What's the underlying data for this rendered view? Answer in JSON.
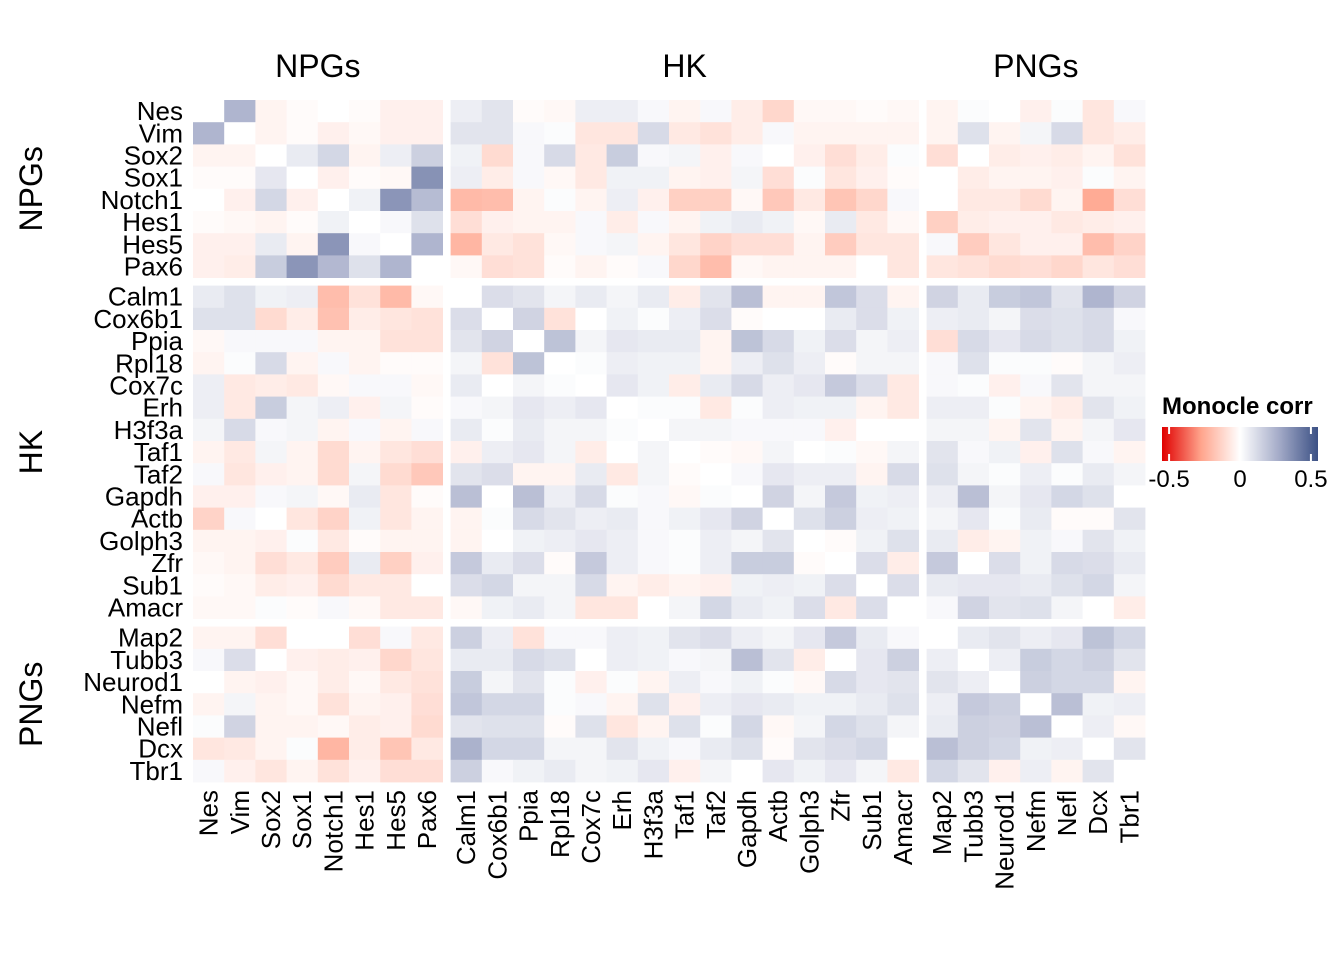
{
  "chart_data": {
    "type": "heatmap",
    "title": "",
    "groups": [
      {
        "name": "NPGs",
        "genes": [
          "Nes",
          "Vim",
          "Sox2",
          "Sox1",
          "Notch1",
          "Hes1",
          "Hes5",
          "Pax6"
        ]
      },
      {
        "name": "HK",
        "genes": [
          "Calm1",
          "Cox6b1",
          "Ppia",
          "Rpl18",
          "Cox7c",
          "Erh",
          "H3f3a",
          "Taf1",
          "Taf2",
          "Gapdh",
          "Actb",
          "Golph3",
          "Zfr",
          "Sub1",
          "Amacr"
        ]
      },
      {
        "name": "PNGs",
        "genes": [
          "Map2",
          "Tubb3",
          "Neurod1",
          "Nefm",
          "Nefl",
          "Dcx",
          "Tbr1"
        ]
      }
    ],
    "legend": {
      "title": "Monocle corr",
      "ticks": [
        -0.5,
        0,
        0.5
      ],
      "tick_labels": [
        "-0.5",
        "0",
        "0.5"
      ],
      "range": [
        -0.5,
        0.5
      ],
      "colors": {
        "low": "#e00000",
        "mid": "#ffffff",
        "high": "#3c5185"
      },
      "placement": "right"
    },
    "matrix": [
      [
        0,
        0.22,
        -0.03,
        -0.01,
        0,
        -0.01,
        -0.04,
        -0.04,
        0.05,
        0.08,
        -0.01,
        -0.02,
        0.05,
        0.05,
        0.02,
        -0.03,
        0.02,
        -0.05,
        -0.11,
        -0.02,
        -0.02,
        -0.01,
        -0.02,
        -0.03,
        0.01,
        0,
        -0.04,
        0.01,
        -0.07,
        0.02
      ],
      [
        0.22,
        0,
        -0.03,
        -0.01,
        -0.04,
        -0.02,
        -0.04,
        -0.04,
        0.08,
        0.08,
        0.02,
        0.01,
        -0.07,
        -0.07,
        0.11,
        -0.06,
        -0.08,
        -0.05,
        0.02,
        -0.03,
        -0.03,
        -0.03,
        -0.03,
        -0.03,
        0.09,
        -0.03,
        0.03,
        0.11,
        -0.07,
        -0.05
      ],
      [
        -0.03,
        -0.03,
        0,
        0.06,
        0.12,
        -0.03,
        0.05,
        0.14,
        0.04,
        -0.1,
        0.02,
        0.11,
        -0.06,
        0.15,
        0.02,
        0.03,
        -0.04,
        0.02,
        0,
        -0.04,
        -0.09,
        -0.05,
        0.01,
        -0.09,
        0,
        -0.05,
        -0.04,
        -0.05,
        -0.03,
        -0.08
      ],
      [
        -0.01,
        -0.01,
        0.07,
        0,
        -0.04,
        -0.01,
        -0.02,
        0.32,
        0.05,
        -0.05,
        0.02,
        -0.02,
        -0.06,
        0.04,
        0.04,
        -0.03,
        -0.04,
        0.03,
        -0.09,
        0.01,
        -0.07,
        -0.04,
        -0.01,
        0,
        -0.05,
        -0.03,
        -0.03,
        -0.04,
        0.01,
        -0.03
      ],
      [
        0,
        -0.04,
        0.12,
        -0.04,
        0,
        0.04,
        0.31,
        0.2,
        -0.19,
        -0.18,
        -0.03,
        0.01,
        -0.03,
        0.05,
        -0.04,
        -0.13,
        -0.13,
        -0.02,
        -0.15,
        -0.06,
        -0.16,
        -0.11,
        0.02,
        0,
        -0.06,
        -0.06,
        -0.1,
        -0.03,
        -0.23,
        -0.09
      ],
      [
        -0.01,
        -0.02,
        -0.03,
        -0.01,
        0.04,
        0,
        0.02,
        0.09,
        -0.09,
        -0.04,
        -0.03,
        -0.03,
        0.02,
        -0.05,
        0.02,
        -0.03,
        0.04,
        0.06,
        0.04,
        -0.02,
        0.06,
        -0.06,
        -0.02,
        -0.13,
        -0.05,
        -0.04,
        -0.04,
        -0.06,
        -0.05,
        -0.04
      ],
      [
        -0.04,
        -0.04,
        0.06,
        -0.03,
        0.31,
        0.02,
        0,
        0.22,
        -0.2,
        -0.06,
        -0.08,
        -0.02,
        0.02,
        0.03,
        -0.03,
        -0.07,
        -0.12,
        -0.09,
        -0.09,
        -0.03,
        -0.14,
        -0.07,
        -0.07,
        0.02,
        -0.14,
        -0.07,
        -0.04,
        -0.04,
        -0.18,
        -0.12
      ],
      [
        -0.04,
        -0.05,
        0.15,
        0.31,
        0.21,
        0.09,
        0.22,
        0,
        -0.02,
        -0.09,
        -0.08,
        -0.01,
        -0.03,
        -0.01,
        0.02,
        -0.11,
        -0.18,
        -0.02,
        -0.03,
        -0.03,
        -0.03,
        0,
        -0.07,
        -0.07,
        -0.08,
        -0.1,
        -0.09,
        -0.11,
        -0.07,
        -0.09
      ],
      [
        0.06,
        0.09,
        0.04,
        0.05,
        -0.18,
        -0.08,
        -0.19,
        -0.02,
        0,
        0.1,
        0.08,
        0.03,
        0.06,
        0.03,
        0.06,
        -0.05,
        0.08,
        0.19,
        -0.03,
        -0.03,
        0.17,
        0.1,
        -0.03,
        0.13,
        0.06,
        0.15,
        0.17,
        0.08,
        0.22,
        0.13
      ],
      [
        0.09,
        0.09,
        -0.1,
        -0.05,
        -0.17,
        -0.05,
        -0.07,
        -0.08,
        0.1,
        0,
        0.13,
        -0.08,
        0,
        0.04,
        0.01,
        0.05,
        0.1,
        -0.01,
        0,
        0,
        0.06,
        0.1,
        0.04,
        0.05,
        0.06,
        0.03,
        0.1,
        0.09,
        0.11,
        0.02
      ],
      [
        -0.02,
        0.02,
        0.02,
        0.02,
        -0.03,
        -0.03,
        -0.08,
        -0.08,
        0.08,
        0.13,
        0,
        0.18,
        0.03,
        0.07,
        0.06,
        0.06,
        -0.03,
        0.18,
        0.11,
        0.04,
        0.1,
        0.03,
        0.05,
        -0.09,
        0.11,
        0.07,
        0.11,
        0.09,
        0.11,
        0.04
      ],
      [
        -0.03,
        0.01,
        0.11,
        -0.03,
        0.02,
        -0.03,
        -0.01,
        -0.01,
        0.03,
        -0.08,
        0.18,
        0,
        0.01,
        0.05,
        0.04,
        0.04,
        -0.03,
        0.05,
        0.09,
        0.05,
        -0.01,
        0.03,
        0.03,
        0.02,
        0.09,
        0.01,
        0.01,
        -0.01,
        0.03,
        0.05
      ],
      [
        0.05,
        -0.06,
        -0.05,
        -0.06,
        -0.02,
        0.02,
        0.02,
        -0.02,
        0.06,
        0,
        0.03,
        0.01,
        0,
        0.07,
        0.04,
        -0.05,
        0.06,
        0.11,
        0.05,
        0.07,
        0.16,
        0.1,
        -0.06,
        0.02,
        0.01,
        -0.04,
        0.02,
        0.08,
        0.03,
        0.03
      ],
      [
        0.05,
        -0.06,
        0.15,
        0.03,
        0.05,
        -0.04,
        0.03,
        -0.01,
        0.02,
        0.03,
        0.07,
        0.05,
        0.07,
        0,
        0.01,
        0.01,
        -0.06,
        0.01,
        0.05,
        0.04,
        0.04,
        -0.03,
        -0.06,
        0.05,
        0.05,
        0.01,
        -0.03,
        -0.05,
        0.08,
        0.04
      ],
      [
        0.03,
        0.11,
        0.02,
        0.03,
        -0.03,
        0.02,
        -0.03,
        0.02,
        0.06,
        0.01,
        0.06,
        0.03,
        0.03,
        0.01,
        0,
        0.03,
        0.03,
        0.02,
        0.02,
        0.02,
        -0.04,
        0,
        0,
        0.03,
        0.03,
        -0.03,
        0.08,
        -0.03,
        0.03,
        0.07
      ],
      [
        -0.03,
        -0.06,
        0.03,
        -0.03,
        -0.1,
        -0.03,
        -0.07,
        -0.09,
        -0.04,
        0.05,
        0.07,
        0.03,
        -0.05,
        0,
        0.03,
        0,
        -0.01,
        -0.02,
        0.03,
        0,
        0.01,
        -0.02,
        0.03,
        0.08,
        0.02,
        0.04,
        -0.04,
        0.09,
        0.02,
        -0.03
      ],
      [
        0.02,
        -0.07,
        -0.04,
        -0.03,
        -0.1,
        0.03,
        -0.1,
        -0.15,
        0.08,
        0.1,
        -0.03,
        -0.03,
        0.06,
        -0.06,
        0.03,
        -0.01,
        0,
        0.02,
        0.07,
        0.05,
        0.05,
        -0.03,
        0.11,
        0.09,
        0.03,
        0.01,
        0.05,
        0.01,
        0.06,
        0.03
      ],
      [
        -0.04,
        -0.04,
        0.02,
        0.03,
        -0.02,
        0.06,
        -0.07,
        -0.01,
        0.19,
        0,
        0.19,
        0.05,
        0.11,
        0.01,
        0.02,
        -0.02,
        0.01,
        0,
        0.13,
        0.03,
        0.16,
        0.04,
        0.05,
        0.05,
        0.19,
        0.03,
        0.07,
        0.12,
        0.09,
        0
      ],
      [
        -0.12,
        0.02,
        0,
        -0.07,
        -0.12,
        0.04,
        -0.07,
        -0.03,
        -0.03,
        0.01,
        0.11,
        0.08,
        0.05,
        0.06,
        0.02,
        0.04,
        0.07,
        0.13,
        0,
        0.09,
        0.14,
        0.05,
        0.04,
        0.03,
        0.07,
        0.01,
        0.06,
        -0.01,
        -0.01,
        0.08
      ],
      [
        -0.03,
        -0.03,
        -0.04,
        0.01,
        -0.06,
        -0.01,
        -0.03,
        -0.03,
        -0.03,
        0,
        0.04,
        0.05,
        0.07,
        0.05,
        0.02,
        0.01,
        0.05,
        0.03,
        0.08,
        0,
        -0.01,
        0.04,
        0.09,
        0.06,
        -0.05,
        -0.03,
        0.04,
        0.02,
        0.08,
        0.04
      ],
      [
        -0.02,
        -0.03,
        -0.09,
        -0.06,
        -0.14,
        0.06,
        -0.13,
        -0.04,
        0.16,
        0.06,
        0.1,
        -0.01,
        0.16,
        0.05,
        0.02,
        0.01,
        0.05,
        0.15,
        0.15,
        -0.01,
        0,
        0.1,
        -0.05,
        0.16,
        0,
        0.1,
        0.04,
        0.11,
        0.1,
        0.06
      ],
      [
        -0.01,
        -0.02,
        -0.05,
        -0.04,
        -0.1,
        -0.06,
        -0.06,
        0,
        0.1,
        0.12,
        0.03,
        0.03,
        0.11,
        -0.03,
        -0.05,
        -0.03,
        -0.04,
        0.04,
        0.05,
        0.04,
        0.1,
        0,
        0.1,
        0.06,
        0.07,
        0.07,
        0.06,
        0.09,
        0.12,
        0.03
      ],
      [
        -0.02,
        -0.02,
        0.01,
        -0.01,
        0.02,
        -0.02,
        -0.06,
        -0.06,
        -0.02,
        0.04,
        0.06,
        0.03,
        -0.07,
        -0.07,
        0,
        0.03,
        0.12,
        0.06,
        0.04,
        0.1,
        -0.06,
        0.1,
        0,
        0.02,
        0.13,
        0.08,
        0.09,
        0.03,
        0,
        -0.05
      ],
      [
        -0.03,
        -0.03,
        -0.09,
        0,
        0,
        -0.09,
        0.02,
        -0.06,
        0.14,
        0.05,
        -0.08,
        0.02,
        0.02,
        0.05,
        0.04,
        0.08,
        0.1,
        0.05,
        0.03,
        0.07,
        0.16,
        0.06,
        0.02,
        0,
        0.06,
        0.08,
        0.05,
        0.07,
        0.18,
        0.12
      ],
      [
        0.02,
        0.1,
        0,
        -0.04,
        -0.05,
        -0.04,
        -0.11,
        -0.07,
        0.06,
        0.06,
        0.11,
        0.09,
        0,
        0.05,
        0.04,
        0.02,
        0.03,
        0.19,
        0.08,
        -0.05,
        0,
        0.07,
        0.14,
        0.05,
        0,
        0.05,
        0.15,
        0.12,
        0.14,
        0.08
      ],
      [
        0,
        -0.03,
        -0.04,
        -0.02,
        -0.05,
        -0.02,
        -0.06,
        -0.08,
        0.15,
        0.03,
        0.08,
        0.01,
        -0.04,
        0.01,
        -0.03,
        0.05,
        0.02,
        0.04,
        0.01,
        -0.02,
        0.11,
        0.07,
        0.08,
        0.08,
        0.05,
        0,
        0.14,
        0.12,
        0.12,
        -0.03
      ],
      [
        -0.03,
        0.03,
        -0.03,
        -0.02,
        -0.08,
        -0.03,
        -0.04,
        -0.09,
        0.17,
        0.12,
        0.12,
        0.01,
        0.02,
        -0.03,
        0.09,
        -0.04,
        0.05,
        0.07,
        0.06,
        0.04,
        0.04,
        0.06,
        0.09,
        0.05,
        0.16,
        0.14,
        0,
        0.19,
        0.04,
        0.05
      ],
      [
        0.01,
        0.13,
        -0.03,
        -0.03,
        -0.02,
        -0.05,
        -0.04,
        -0.1,
        0.08,
        0.09,
        0.09,
        -0.01,
        0.09,
        -0.07,
        -0.03,
        0.09,
        0.01,
        0.12,
        -0.02,
        0.03,
        0.12,
        0.09,
        0.03,
        0.06,
        0.14,
        0.13,
        0.19,
        0,
        0.05,
        -0.02
      ],
      [
        -0.07,
        -0.06,
        -0.03,
        0.01,
        -0.2,
        -0.05,
        -0.16,
        -0.06,
        0.23,
        0.12,
        0.12,
        0.03,
        0.03,
        0.08,
        0.04,
        0.02,
        0.06,
        0.09,
        -0.01,
        0.08,
        0.1,
        0.12,
        0,
        0.19,
        0.14,
        0.12,
        0.04,
        0.05,
        0,
        0.08
      ],
      [
        0.02,
        -0.04,
        -0.07,
        -0.03,
        -0.08,
        -0.04,
        -0.09,
        -0.09,
        0.14,
        0.02,
        0.04,
        0.06,
        0.03,
        0.04,
        0.07,
        -0.04,
        0.03,
        0,
        0.07,
        0.04,
        0.07,
        0.03,
        -0.06,
        0.12,
        0.08,
        -0.04,
        0.05,
        -0.03,
        0.08,
        0
      ]
    ]
  }
}
